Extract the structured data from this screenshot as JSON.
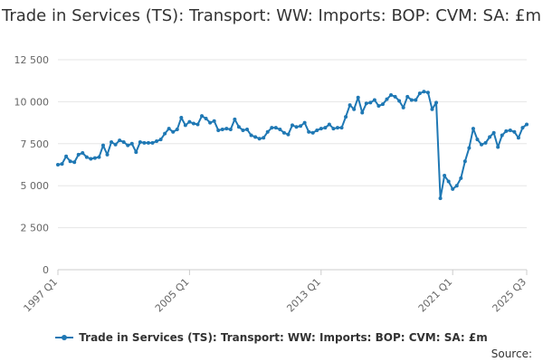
{
  "chart_data": {
    "type": "line",
    "title": "Trade in Services (TS): Transport: WW: Imports: BOP: CVM: SA: £m",
    "xlabel": "",
    "ylabel": "",
    "ylim": [
      0,
      12500
    ],
    "yticks": [
      0,
      2500,
      5000,
      7500,
      10000,
      12500
    ],
    "ytick_labels": [
      "0",
      "2 500",
      "5 000",
      "7 500",
      "10 000",
      "12 500"
    ],
    "xtick_labels": [
      "1997 Q1",
      "2005 Q1",
      "2013 Q1",
      "2021 Q1",
      "2025 Q3"
    ],
    "grid": true,
    "legend_position": "bottom",
    "color": "#1f78b4",
    "series": [
      {
        "name": "Trade in Services (TS): Transport: WW: Imports: BOP: CVM: SA: £m",
        "x": [
          "1997 Q1",
          "1997 Q2",
          "1997 Q3",
          "1997 Q4",
          "1998 Q1",
          "1998 Q2",
          "1998 Q3",
          "1998 Q4",
          "1999 Q1",
          "1999 Q2",
          "1999 Q3",
          "1999 Q4",
          "2000 Q1",
          "2000 Q2",
          "2000 Q3",
          "2000 Q4",
          "2001 Q1",
          "2001 Q2",
          "2001 Q3",
          "2001 Q4",
          "2002 Q1",
          "2002 Q2",
          "2002 Q3",
          "2002 Q4",
          "2003 Q1",
          "2003 Q2",
          "2003 Q3",
          "2003 Q4",
          "2004 Q1",
          "2004 Q2",
          "2004 Q3",
          "2004 Q4",
          "2005 Q1",
          "2005 Q2",
          "2005 Q3",
          "2005 Q4",
          "2006 Q1",
          "2006 Q2",
          "2006 Q3",
          "2006 Q4",
          "2007 Q1",
          "2007 Q2",
          "2007 Q3",
          "2007 Q4",
          "2008 Q1",
          "2008 Q2",
          "2008 Q3",
          "2008 Q4",
          "2009 Q1",
          "2009 Q2",
          "2009 Q3",
          "2009 Q4",
          "2010 Q1",
          "2010 Q2",
          "2010 Q3",
          "2010 Q4",
          "2011 Q1",
          "2011 Q2",
          "2011 Q3",
          "2011 Q4",
          "2012 Q1",
          "2012 Q2",
          "2012 Q3",
          "2012 Q4",
          "2013 Q1",
          "2013 Q2",
          "2013 Q3",
          "2013 Q4",
          "2014 Q1",
          "2014 Q2",
          "2014 Q3",
          "2014 Q4",
          "2015 Q1",
          "2015 Q2",
          "2015 Q3",
          "2015 Q4",
          "2016 Q1",
          "2016 Q2",
          "2016 Q3",
          "2016 Q4",
          "2017 Q1",
          "2017 Q2",
          "2017 Q3",
          "2017 Q4",
          "2018 Q1",
          "2018 Q2",
          "2018 Q3",
          "2018 Q4",
          "2019 Q1",
          "2019 Q2",
          "2019 Q3",
          "2019 Q4",
          "2020 Q1",
          "2020 Q2",
          "2020 Q3",
          "2020 Q4",
          "2021 Q1",
          "2021 Q2",
          "2021 Q3",
          "2021 Q4",
          "2022 Q1",
          "2022 Q2",
          "2022 Q3",
          "2022 Q4",
          "2023 Q1",
          "2023 Q2",
          "2023 Q3",
          "2023 Q4",
          "2024 Q1",
          "2024 Q2",
          "2024 Q3",
          "2024 Q4",
          "2025 Q1",
          "2025 Q2",
          "2025 Q3"
        ],
        "values": [
          6250,
          6300,
          6750,
          6450,
          6400,
          6850,
          6950,
          6700,
          6600,
          6650,
          6700,
          7400,
          6850,
          7600,
          7450,
          7700,
          7600,
          7400,
          7500,
          7000,
          7600,
          7550,
          7550,
          7550,
          7650,
          7750,
          8100,
          8400,
          8200,
          8350,
          9050,
          8600,
          8800,
          8700,
          8650,
          9150,
          9000,
          8750,
          8850,
          8300,
          8350,
          8400,
          8350,
          8950,
          8500,
          8300,
          8350,
          8000,
          7900,
          7800,
          7850,
          8200,
          8450,
          8450,
          8350,
          8150,
          8050,
          8600,
          8500,
          8550,
          8750,
          8200,
          8150,
          8300,
          8400,
          8450,
          8650,
          8400,
          8450,
          8450,
          9100,
          9800,
          9550,
          10250,
          9350,
          9900,
          9950,
          10100,
          9750,
          9850,
          10150,
          10400,
          10300,
          10050,
          9650,
          10300,
          10100,
          10100,
          10500,
          10600,
          10550,
          9550,
          9950,
          4250,
          5600,
          5250,
          4800,
          5000,
          5450,
          6450,
          7250,
          8400,
          7750,
          7450,
          7550,
          7900,
          8150,
          7300,
          8000,
          8250,
          8300,
          8200,
          7850,
          8450,
          8650
        ]
      }
    ]
  },
  "legend": {
    "label": "Trade in Services (TS): Transport: WW: Imports: BOP: CVM: SA: £m"
  },
  "source": {
    "label": "Source:"
  }
}
